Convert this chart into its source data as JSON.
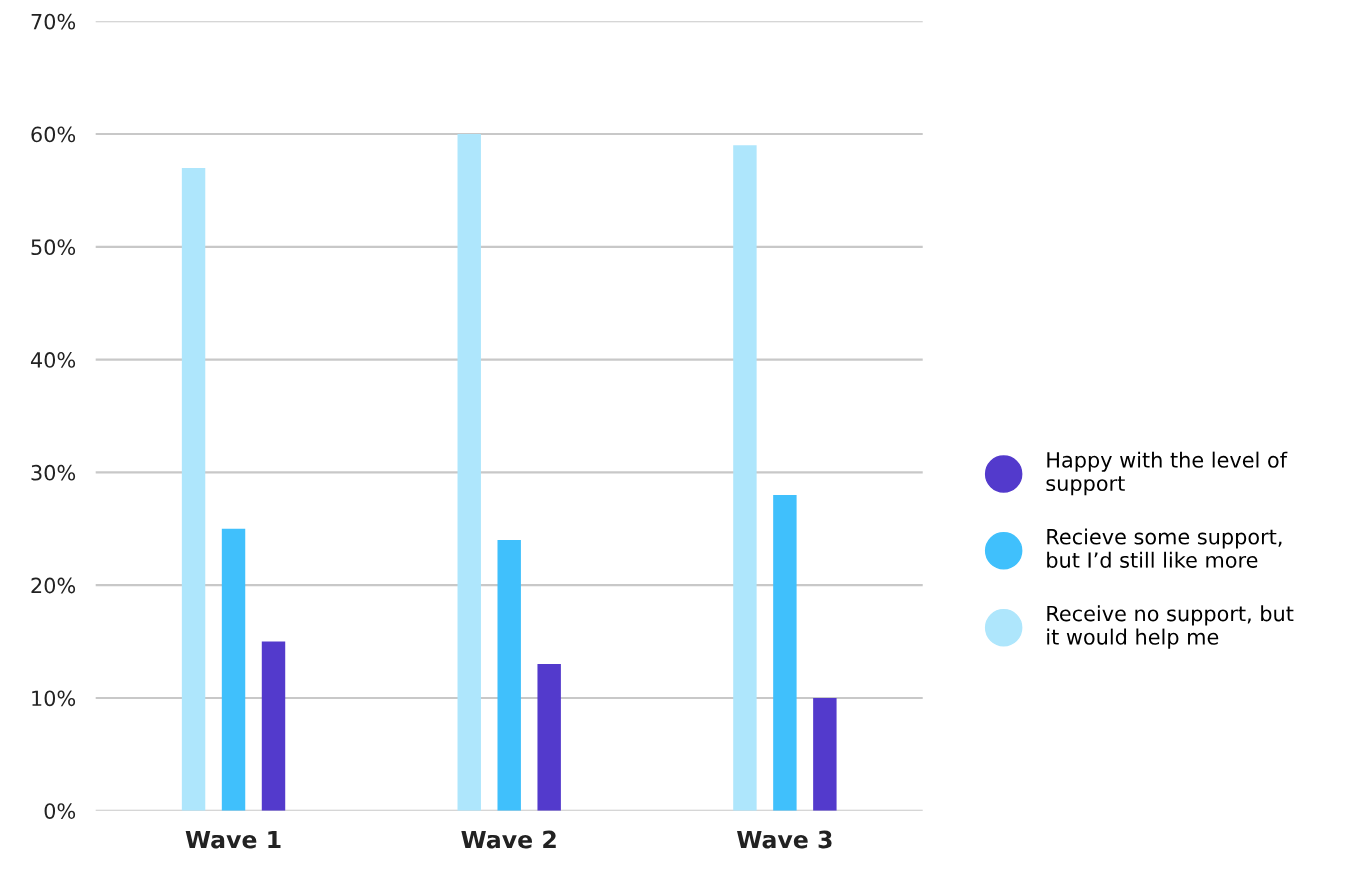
{
  "chart_data": {
    "type": "bar",
    "categories": [
      "Wave 1",
      "Wave 2",
      "Wave 3"
    ],
    "series": [
      {
        "name": "Receive no support, but it would help me",
        "color": "#aee6fc",
        "values": [
          57,
          60,
          59
        ]
      },
      {
        "name": "Recieve some support, but I’d still like more",
        "color": "#40c0fc",
        "values": [
          25,
          24,
          28
        ]
      },
      {
        "name": "Happy with the level of support",
        "color": "#533acc",
        "values": [
          15,
          13,
          10
        ]
      }
    ],
    "ylim": [
      0,
      70
    ],
    "yticks": [
      {
        "value": 0,
        "label": "0%"
      },
      {
        "value": 10,
        "label": "10%"
      },
      {
        "value": 20,
        "label": "20%"
      },
      {
        "value": 30,
        "label": "30%"
      },
      {
        "value": 40,
        "label": "40%"
      },
      {
        "value": 50,
        "label": "50%"
      },
      {
        "value": 60,
        "label": "60%"
      },
      {
        "value": 70,
        "label": "70%"
      }
    ],
    "grid": "y",
    "legend": "right",
    "marker": "circle"
  }
}
